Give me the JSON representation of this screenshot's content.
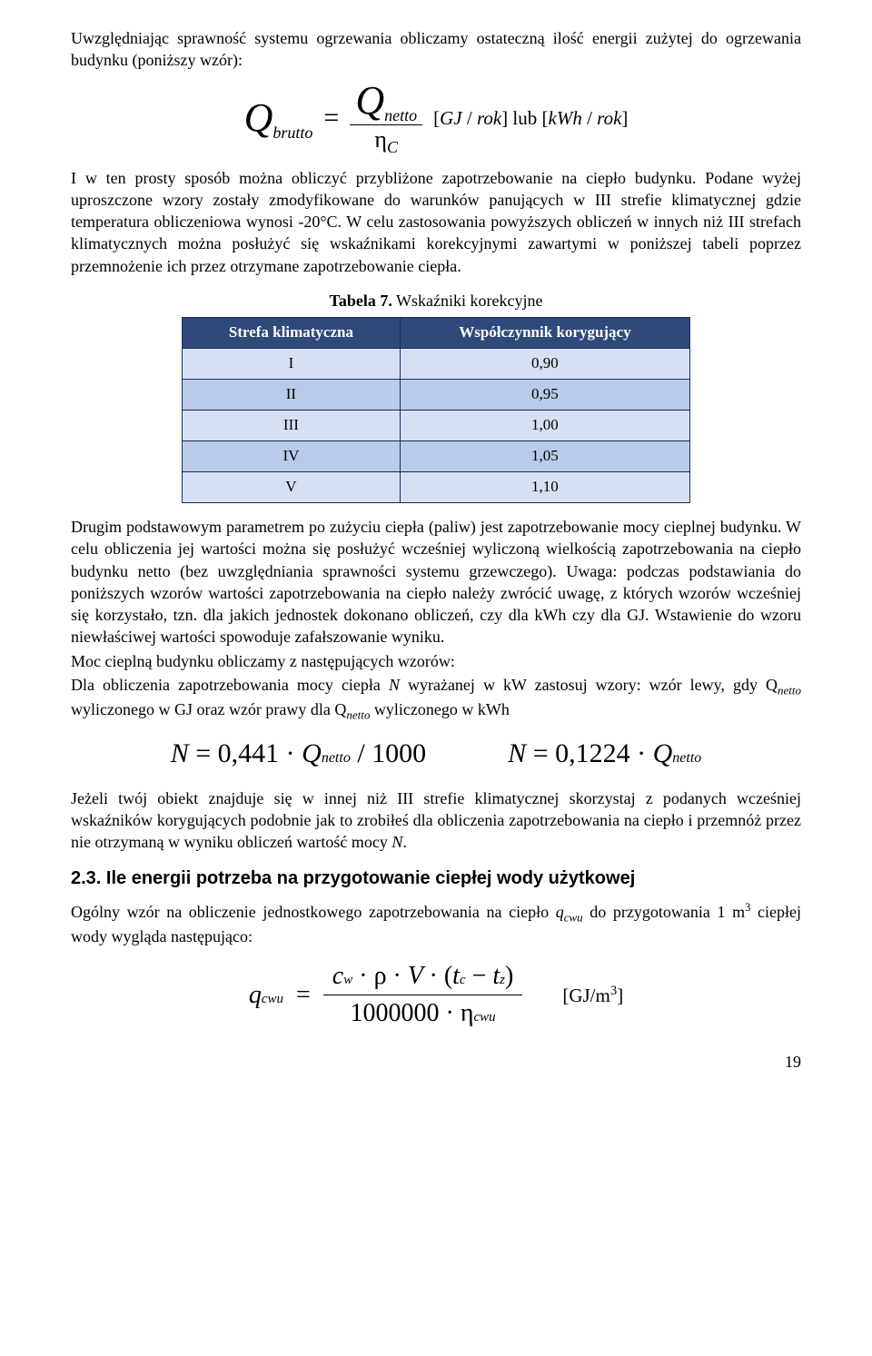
{
  "para1": "Uwzględniając sprawność systemu ogrzewania obliczamy ostateczną ilość energii zużytej do ogrzewania budynku (poniższy wzór):",
  "formula1": {
    "lhs": "Q",
    "lhs_sub": "brutto",
    "num": "Q",
    "num_sub": "netto",
    "den_sym": "η",
    "den_sub": "C",
    "unit1_open": "[",
    "unit1_a": "GJ",
    "unit1_sep": " / ",
    "unit1_b": "rok",
    "unit1_close": "]",
    "lub": " lub ",
    "unit2_open": "[",
    "unit2_a": "kWh",
    "unit2_sep": " / ",
    "unit2_b": "rok",
    "unit2_close": "]"
  },
  "para2": "I w ten prosty sposób można obliczyć przybliżone zapotrzebowanie na ciepło budynku. Podane wyżej uproszczone wzory zostały zmodyfikowane do warunków panujących w III strefie klimatycznej gdzie temperatura obliczeniowa wynosi -20°C. W celu zastosowania powyższych obliczeń w innych niż III strefach klimatycznych można posłużyć się wskaźnikami korekcyjnymi zawartymi w poniższej tabeli poprzez przemnożenie ich przez otrzymane zapotrzebowanie ciepła.",
  "table_caption_a": "Tabela 7.",
  "table_caption_b": " Wskaźniki korekcyjne",
  "table": {
    "header": [
      "Strefa klimatyczna",
      "Współczynnik korygujący"
    ],
    "rows": [
      [
        "I",
        "0,90"
      ],
      [
        "II",
        "0,95"
      ],
      [
        "III",
        "1,00"
      ],
      [
        "IV",
        "1,05"
      ],
      [
        "V",
        "1,10"
      ]
    ],
    "colors": {
      "header_bg": "#2f4a7a",
      "row_light": "#d6e0f2",
      "row_dark": "#b9cbe8",
      "border": "#1a2a5a"
    }
  },
  "para3a": "Drugim podstawowym parametrem po zużyciu ciepła (paliw) jest zapotrzebowanie mocy cieplnej budynku. W celu obliczenia jej wartości można się posłużyć wcześniej wyliczoną wielkością zapotrzebowania na ciepło budynku netto (bez uwzględniania sprawności systemu grzewczego). Uwaga: podczas podstawiania do poniższych wzorów wartości zapotrzebowania na ciepło należy zwrócić uwagę, z których wzorów wcześniej się korzystało, tzn. dla jakich jednostek dokonano obliczeń, czy dla kWh czy dla GJ. Wstawienie do wzoru niewłaściwej wartości spowoduje zafałszowanie wyniku.",
  "para3b": "Moc cieplną budynku obliczamy z następujących wzorów:",
  "para3c_a": "Dla obliczenia zapotrzebowania mocy ciepła ",
  "para3c_N": "N",
  "para3c_b": " wyrażanej w kW zastosuj wzory: wzór lewy, gdy Q",
  "para3c_sub1": "netto",
  "para3c_c": " wyliczonego w GJ oraz wzór prawy dla Q",
  "para3c_sub2": "netto",
  "para3c_d": " wyliczonego w kWh",
  "formula2": {
    "left": {
      "N": "N",
      "eq": " = ",
      "coef": "0,441",
      "Q": "Q",
      "Q_sub": "netto",
      "div": " / ",
      "denom": "1000"
    },
    "right": {
      "N": "N",
      "eq": " = ",
      "coef": "0,1224",
      "Q": "Q",
      "Q_sub": "netto"
    }
  },
  "para4": "Jeżeli twój obiekt znajduje się w innej niż III strefie klimatycznej skorzystaj z podanych wcześniej wskaźników korygujących podobnie jak to zrobiłeś dla obliczenia zapotrzebowania na ciepło i przemnóż przez nie otrzymaną w wyniku obliczeń wartość mocy ",
  "para4_N": "N",
  "para4_end": ".",
  "section": "2.3. Ile energii potrzeba na przygotowanie ciepłej wody użytkowej",
  "para5_a": "Ogólny wzór na obliczenie jednostkowego zapotrzebowania na ciepło ",
  "para5_q": "q",
  "para5_qsub": "cwu",
  "para5_b": " do przygotowania 1 m",
  "para5_sup": "3",
  "para5_c": " ciepłej wody wygląda następująco:",
  "formula3": {
    "lhs": "q",
    "lhs_sub": "cwu",
    "cw": "c",
    "cw_sub": "w",
    "rho": "ρ",
    "V": "V",
    "tc": "t",
    "tc_sub": "c",
    "tz": "t",
    "tz_sub": "z",
    "denom_num": "1000000",
    "eta": "η",
    "eta_sub": "cwu",
    "unit": "[GJ/m",
    "unit_sup": "3",
    "unit_close": "]"
  },
  "pageno": "19"
}
